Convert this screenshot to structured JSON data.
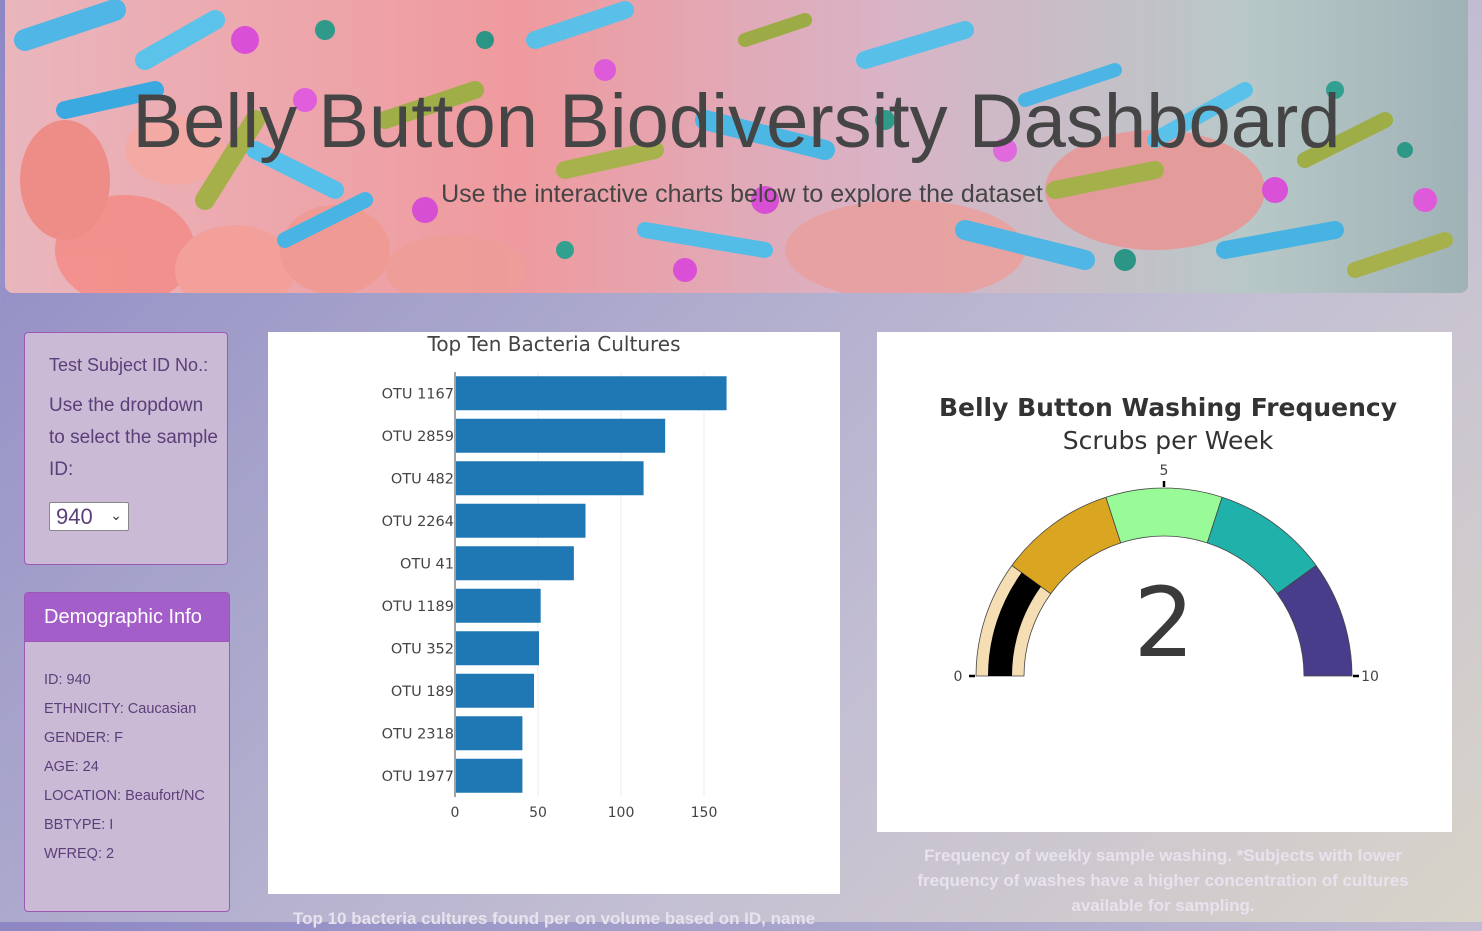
{
  "header": {
    "title": "Belly Button Biodiversity Dashboard",
    "subtitle": "Use the interactive charts below to explore the dataset"
  },
  "selector": {
    "heading": "Test Subject ID No.:",
    "instructions": "Use the dropdown to select the sample ID:",
    "selected_value": "940"
  },
  "demographics": {
    "heading": "Demographic Info",
    "rows": [
      "ID: 940",
      "ETHNICITY: Caucasian",
      "GENDER: F",
      "AGE: 24",
      "LOCATION: Beaufort/NC",
      "BBTYPE: I",
      "WFREQ: 2"
    ]
  },
  "bar_caption": "Top 10 bacteria cultures found per on volume based on ID, name",
  "gauge_caption": "Frequency of weekly sample washing. *Subjects with lower frequency of washes have a higher concentration of cultures available for sampling.",
  "chart_data": [
    {
      "type": "bar",
      "orientation": "horizontal",
      "title": "Top Ten Bacteria Cultures",
      "categories": [
        "OTU 1167",
        "OTU 2859",
        "OTU 482",
        "OTU 2264",
        "OTU 41",
        "OTU 1189",
        "OTU 352",
        "OTU 189",
        "OTU 2318",
        "OTU 1977"
      ],
      "values": [
        163,
        126,
        113,
        78,
        71,
        51,
        50,
        47,
        40,
        40
      ],
      "xlim": [
        0,
        170
      ],
      "xticks": [
        0,
        50,
        100,
        150
      ],
      "grid": true,
      "bar_color": "#1f77b4"
    },
    {
      "type": "gauge",
      "title": "Belly Button Washing Frequency",
      "subtitle": "Scrubs per Week",
      "value": 2,
      "range": [
        0,
        10
      ],
      "ticks": [
        0,
        5,
        10
      ],
      "steps": [
        {
          "range": [
            0,
            2
          ],
          "color": "#f5deb3"
        },
        {
          "range": [
            2,
            4
          ],
          "color": "#daa520"
        },
        {
          "range": [
            4,
            6
          ],
          "color": "#98fb98"
        },
        {
          "range": [
            6,
            8
          ],
          "color": "#20b2aa"
        },
        {
          "range": [
            8,
            10
          ],
          "color": "#483d8b"
        }
      ],
      "bar_color": "#000000"
    }
  ]
}
